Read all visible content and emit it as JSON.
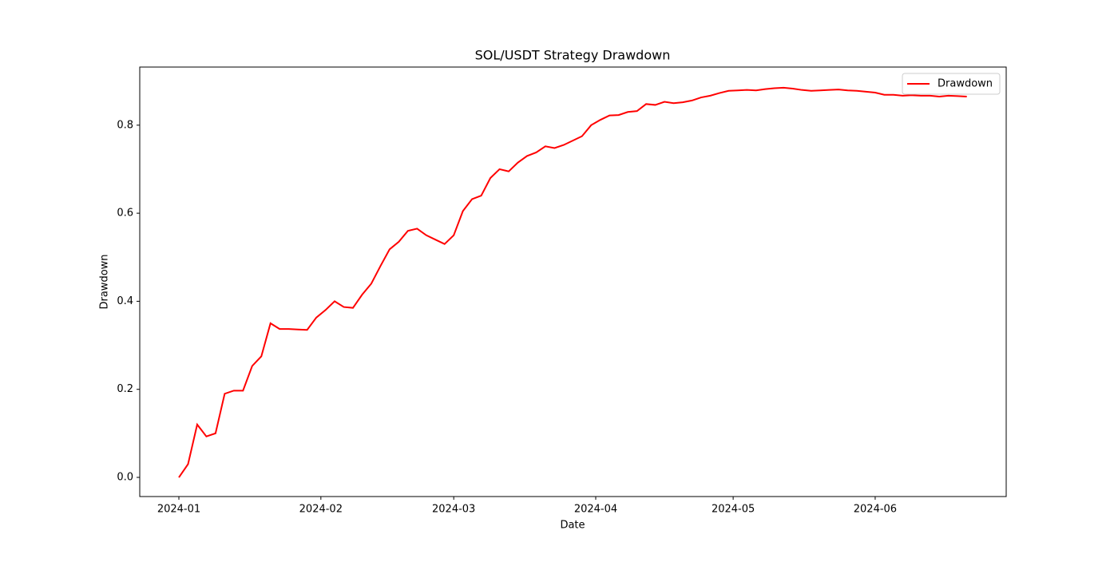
{
  "chart_data": {
    "type": "line",
    "title": "SOL/USDT Strategy Drawdown",
    "x_label": "Date",
    "y_label": "Drawdown",
    "x": [
      0,
      2,
      4,
      6,
      8,
      10,
      12,
      14,
      16,
      18,
      20,
      22,
      24,
      26,
      28,
      30,
      32,
      34,
      36,
      38,
      40,
      42,
      44,
      46,
      48,
      50,
      52,
      54,
      56,
      58,
      60,
      62,
      64,
      66,
      68,
      70,
      72,
      74,
      76,
      78,
      80,
      82,
      84,
      86,
      88,
      90,
      92,
      94,
      96,
      98,
      100,
      102,
      104,
      106,
      108,
      110,
      112,
      114,
      116,
      118,
      120,
      122,
      124,
      126,
      128,
      130,
      132,
      134,
      136,
      138,
      140,
      142,
      144,
      146,
      148,
      150,
      152,
      154,
      156,
      158,
      160,
      162,
      164,
      166,
      168,
      170,
      172
    ],
    "series": [
      {
        "name": "Drawdown",
        "color": "#ff0000",
        "values": [
          0,
          0.03,
          0.12,
          0.093,
          0.1,
          0.19,
          0.197,
          0.197,
          0.253,
          0.275,
          0.35,
          0.337,
          0.337,
          0.336,
          0.335,
          0.363,
          0.38,
          0.4,
          0.387,
          0.385,
          0.415,
          0.44,
          0.48,
          0.518,
          0.535,
          0.56,
          0.565,
          0.55,
          0.54,
          0.53,
          0.55,
          0.605,
          0.632,
          0.64,
          0.68,
          0.7,
          0.695,
          0.715,
          0.73,
          0.738,
          0.752,
          0.748,
          0.755,
          0.765,
          0.775,
          0.8,
          0.812,
          0.822,
          0.823,
          0.83,
          0.832,
          0.848,
          0.846,
          0.853,
          0.85,
          0.852,
          0.856,
          0.863,
          0.867,
          0.873,
          0.878,
          0.879,
          0.88,
          0.879,
          0.882,
          0.884,
          0.885,
          0.883,
          0.88,
          0.878,
          0.879,
          0.88,
          0.881,
          0.879,
          0.878,
          0.876,
          0.874,
          0.869,
          0.869,
          0.867,
          0.868,
          0.867,
          0.867,
          0.865,
          0.867,
          0.866,
          0.865
        ]
      }
    ],
    "xlim": [
      -8.54,
      180.6
    ],
    "xticks": [
      {
        "value": 0,
        "label": "2024-01"
      },
      {
        "value": 31,
        "label": "2024-02"
      },
      {
        "value": 60,
        "label": "2024-03"
      },
      {
        "value": 91,
        "label": "2024-04"
      },
      {
        "value": 121,
        "label": "2024-05"
      },
      {
        "value": 152,
        "label": "2024-06"
      }
    ],
    "ylim": [
      -0.0435,
      0.932
    ],
    "yticks": [
      {
        "value": 0,
        "label": "0.0"
      },
      0.2,
      0.4,
      0.6,
      0.8
    ],
    "legend": "upper right"
  }
}
